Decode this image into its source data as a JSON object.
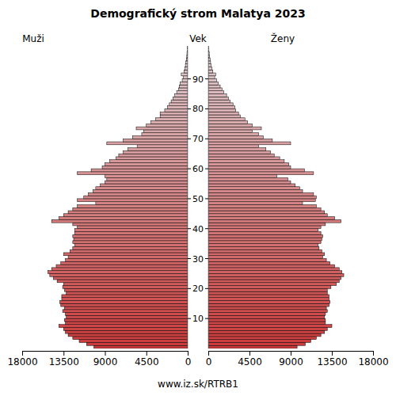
{
  "chart_data": {
    "type": "bar",
    "orientation": "horizontal",
    "title": "Demografický strom Malatya 2023",
    "y_label": "Vek",
    "footer": "www.iz.sk/RTRB1",
    "y": [
      0,
      1,
      2,
      3,
      4,
      5,
      6,
      7,
      8,
      9,
      10,
      11,
      12,
      13,
      14,
      15,
      16,
      17,
      18,
      19,
      20,
      21,
      22,
      23,
      24,
      25,
      26,
      27,
      28,
      29,
      30,
      31,
      32,
      33,
      34,
      35,
      36,
      37,
      38,
      39,
      40,
      41,
      42,
      43,
      44,
      45,
      46,
      47,
      48,
      49,
      50,
      51,
      52,
      53,
      54,
      55,
      56,
      57,
      58,
      59,
      60,
      61,
      62,
      63,
      64,
      65,
      66,
      67,
      68,
      69,
      70,
      71,
      72,
      73,
      74,
      75,
      76,
      77,
      78,
      79,
      80,
      81,
      82,
      83,
      84,
      85,
      86,
      87,
      88,
      89,
      90,
      91,
      92,
      93,
      94,
      95,
      96,
      97,
      98,
      99,
      100
    ],
    "series": [
      {
        "name": "Muži",
        "color": "#cc3b3b",
        "values": [
          10200,
          11000,
          11800,
          12500,
          13000,
          13300,
          13500,
          14000,
          13300,
          13400,
          13200,
          13300,
          13600,
          13400,
          13800,
          13900,
          13700,
          13700,
          13200,
          13400,
          13600,
          13500,
          14200,
          14600,
          15000,
          15200,
          14800,
          14300,
          13800,
          13300,
          13000,
          13500,
          12800,
          12500,
          12300,
          12500,
          12400,
          12500,
          12300,
          12300,
          12000,
          12500,
          14800,
          14000,
          13500,
          13000,
          12500,
          12000,
          10000,
          12000,
          11300,
          10800,
          10300,
          10000,
          9500,
          9000,
          8800,
          9000,
          12000,
          10500,
          9300,
          9000,
          8500,
          7800,
          7500,
          7000,
          6500,
          5500,
          8800,
          7000,
          6000,
          5000,
          4800,
          5600,
          4500,
          4000,
          3500,
          3000,
          3000,
          2500,
          2200,
          2000,
          1800,
          1600,
          1400,
          1200,
          1000,
          900,
          800,
          600,
          500,
          700,
          400,
          300,
          250,
          200,
          150,
          100,
          80,
          60,
          40
        ]
      },
      {
        "name": "Ženy",
        "color": "#cc3b3b",
        "values": [
          9700,
          10600,
          11200,
          11800,
          12300,
          12700,
          13000,
          13500,
          12800,
          12800,
          12700,
          12800,
          13000,
          12900,
          13200,
          13300,
          13200,
          13200,
          13000,
          13000,
          13400,
          14000,
          14300,
          14500,
          14800,
          14600,
          14300,
          13800,
          13300,
          12900,
          12500,
          12700,
          12400,
          12100,
          12000,
          12300,
          12400,
          12500,
          12300,
          12000,
          12300,
          12800,
          14500,
          13800,
          13000,
          12700,
          12300,
          11800,
          10300,
          11700,
          11800,
          11500,
          10300,
          10000,
          9500,
          9000,
          8700,
          7500,
          11500,
          10500,
          9000,
          8800,
          8300,
          7800,
          7200,
          6800,
          6300,
          5500,
          9000,
          7000,
          6000,
          5500,
          4800,
          5800,
          4800,
          4300,
          4000,
          3500,
          3300,
          3000,
          2900,
          2700,
          2400,
          2200,
          2000,
          1700,
          1500,
          1300,
          1100,
          900,
          700,
          800,
          500,
          400,
          300,
          250,
          200,
          150,
          100,
          70,
          50
        ]
      }
    ],
    "xlim": [
      0,
      18000
    ],
    "xticks": [
      0,
      4500,
      9000,
      13500,
      18000
    ],
    "ylim": [
      0,
      101
    ],
    "yticks": [
      10,
      20,
      30,
      40,
      50,
      60,
      70,
      80,
      90
    ],
    "grid": false
  }
}
